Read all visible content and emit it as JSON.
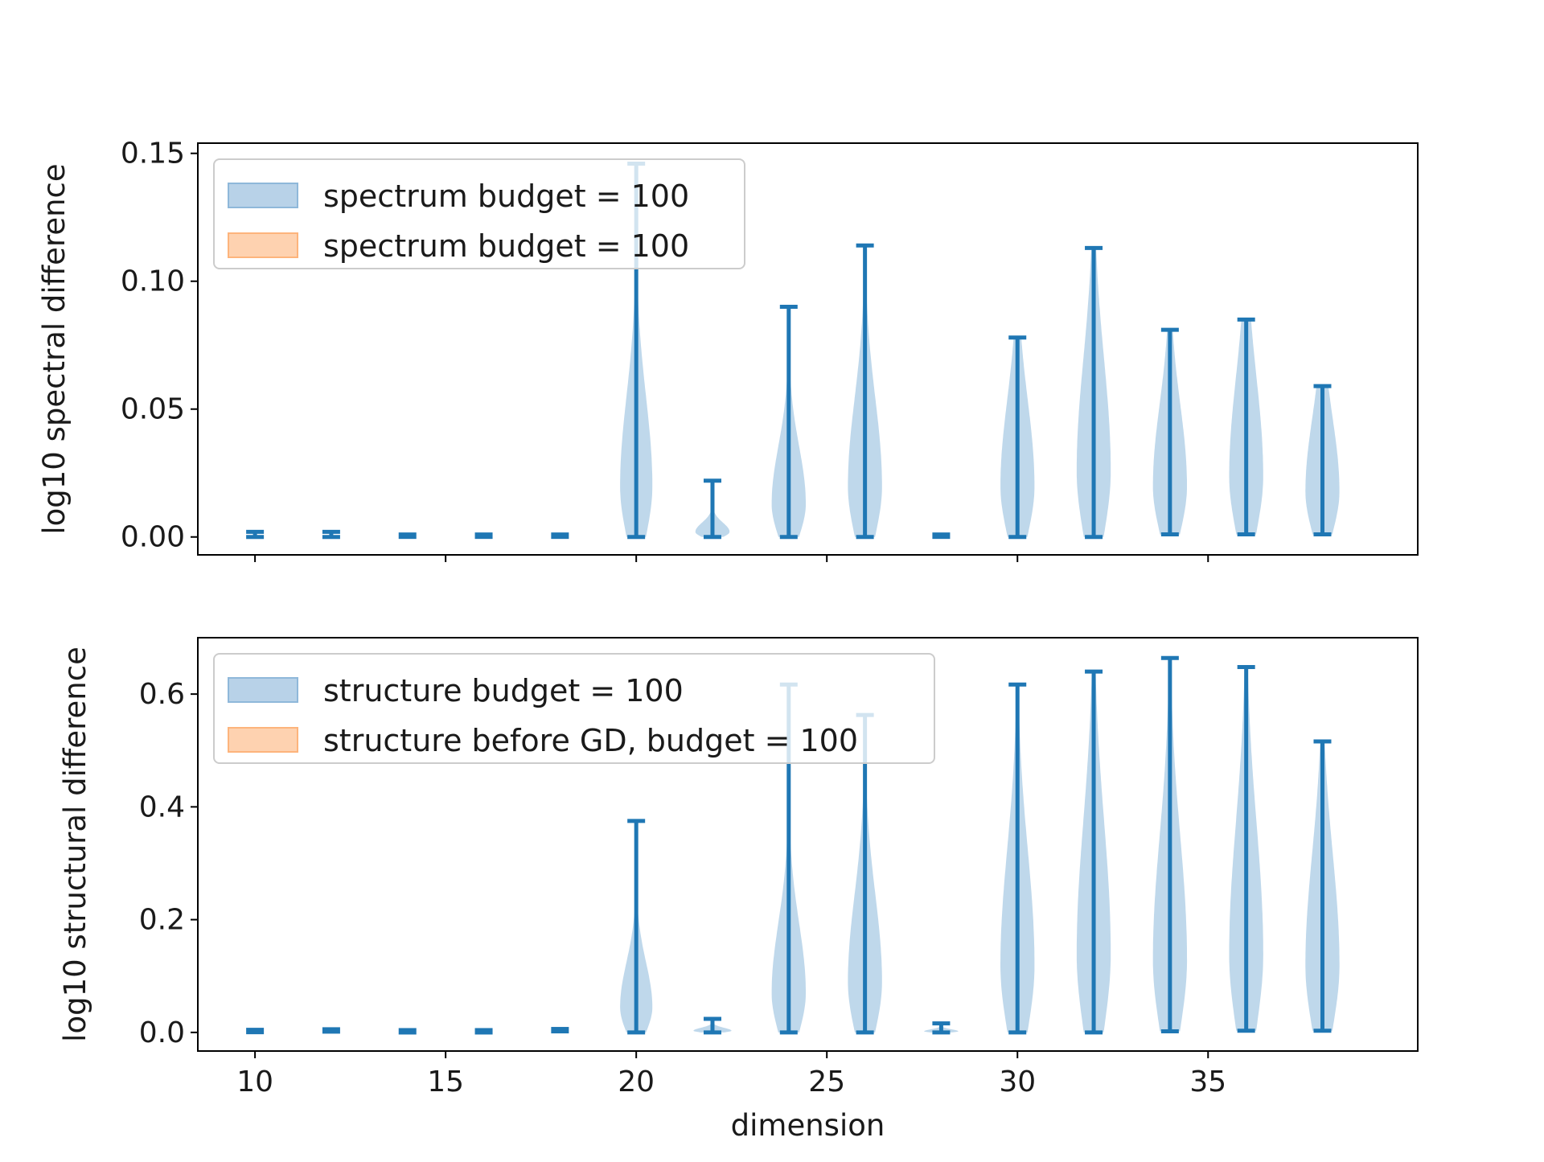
{
  "colors": {
    "series_blue": "#1f77b4",
    "violin_fill": "#bcd6ea",
    "legend_blue_fill": "#b8d2e8",
    "legend_blue_edge": "#8fb8da",
    "legend_orange_fill": "#fed2b0",
    "legend_orange_edge": "#fdb47c",
    "axis": "#000000",
    "legend_frame": "#cccccc"
  },
  "chart_data": [
    {
      "type": "violin",
      "ylabel": "log10 spectral difference",
      "xlabel": "",
      "xlim": [
        8.5,
        40.5
      ],
      "ylim": [
        -0.007,
        0.154
      ],
      "xticks": [
        10,
        15,
        20,
        25,
        30,
        35
      ],
      "xtick_labels_visible": false,
      "yticks": [
        0.0,
        0.05,
        0.1,
        0.15
      ],
      "ytick_labels": [
        "0.00",
        "0.05",
        "0.10",
        "0.15"
      ],
      "legend": {
        "placement": "upper-left",
        "entries": [
          {
            "label": "spectrum budget = 100",
            "color": "blue"
          },
          {
            "label": "spectrum budget = 100",
            "color": "orange"
          }
        ]
      },
      "series": [
        {
          "dimension": 10,
          "min": 0.0,
          "max": 0.002,
          "peak": 0.0,
          "width": 0.0
        },
        {
          "dimension": 12,
          "min": 0.0,
          "max": 0.002,
          "peak": 0.0,
          "width": 0.0
        },
        {
          "dimension": 14,
          "min": 0.0,
          "max": 0.001,
          "peak": 0.0,
          "width": 0.0
        },
        {
          "dimension": 16,
          "min": 0.0,
          "max": 0.001,
          "peak": 0.0,
          "width": 0.0
        },
        {
          "dimension": 18,
          "min": 0.0,
          "max": 0.001,
          "peak": 0.0,
          "width": 0.0
        },
        {
          "dimension": 20,
          "min": 0.0,
          "max": 0.146,
          "peak": 0.02,
          "width": 0.85
        },
        {
          "dimension": 22,
          "min": 0.0,
          "max": 0.022,
          "peak": 0.002,
          "width": 0.9
        },
        {
          "dimension": 24,
          "min": 0.0,
          "max": 0.09,
          "peak": 0.013,
          "width": 0.9
        },
        {
          "dimension": 26,
          "min": 0.0,
          "max": 0.114,
          "peak": 0.02,
          "width": 0.9
        },
        {
          "dimension": 28,
          "min": 0.0,
          "max": 0.001,
          "peak": 0.0,
          "width": 0.0
        },
        {
          "dimension": 30,
          "min": 0.0,
          "max": 0.078,
          "peak": 0.02,
          "width": 0.9
        },
        {
          "dimension": 32,
          "min": 0.0,
          "max": 0.113,
          "peak": 0.026,
          "width": 0.9
        },
        {
          "dimension": 34,
          "min": 0.001,
          "max": 0.081,
          "peak": 0.02,
          "width": 0.9
        },
        {
          "dimension": 36,
          "min": 0.001,
          "max": 0.085,
          "peak": 0.024,
          "width": 0.9
        },
        {
          "dimension": 38,
          "min": 0.001,
          "max": 0.059,
          "peak": 0.018,
          "width": 0.9
        }
      ]
    },
    {
      "type": "violin",
      "ylabel": "log10 structural difference",
      "xlabel": "dimension",
      "xlim": [
        8.5,
        40.5
      ],
      "ylim": [
        -0.033,
        0.7
      ],
      "xticks": [
        10,
        15,
        20,
        25,
        30,
        35
      ],
      "xtick_labels_visible": true,
      "xtick_labels": [
        "10",
        "15",
        "20",
        "25",
        "30",
        "35"
      ],
      "yticks": [
        0.0,
        0.2,
        0.4,
        0.6
      ],
      "ytick_labels": [
        "0.0",
        "0.2",
        "0.4",
        "0.6"
      ],
      "legend": {
        "placement": "upper-left",
        "entries": [
          {
            "label": "structure budget = 100",
            "color": "blue"
          },
          {
            "label": "structure before GD, budget = 100",
            "color": "orange"
          }
        ]
      },
      "series": [
        {
          "dimension": 10,
          "min": 0.0,
          "max": 0.005,
          "peak": 0.0,
          "width": 0.0
        },
        {
          "dimension": 12,
          "min": 0.0,
          "max": 0.007,
          "peak": 0.0,
          "width": 0.0
        },
        {
          "dimension": 14,
          "min": 0.0,
          "max": 0.004,
          "peak": 0.0,
          "width": 0.0
        },
        {
          "dimension": 16,
          "min": 0.0,
          "max": 0.004,
          "peak": 0.0,
          "width": 0.0
        },
        {
          "dimension": 18,
          "min": 0.0,
          "max": 0.008,
          "peak": 0.0,
          "width": 0.0
        },
        {
          "dimension": 20,
          "min": 0.0,
          "max": 0.375,
          "peak": 0.045,
          "width": 0.85
        },
        {
          "dimension": 22,
          "min": 0.0,
          "max": 0.024,
          "peak": 0.003,
          "width": 1.0
        },
        {
          "dimension": 24,
          "min": 0.0,
          "max": 0.617,
          "peak": 0.07,
          "width": 0.9
        },
        {
          "dimension": 26,
          "min": 0.0,
          "max": 0.563,
          "peak": 0.09,
          "width": 0.9
        },
        {
          "dimension": 28,
          "min": 0.0,
          "max": 0.016,
          "peak": 0.002,
          "width": 0.9
        },
        {
          "dimension": 30,
          "min": 0.0,
          "max": 0.617,
          "peak": 0.12,
          "width": 0.9
        },
        {
          "dimension": 32,
          "min": 0.0,
          "max": 0.64,
          "peak": 0.14,
          "width": 0.9
        },
        {
          "dimension": 34,
          "min": 0.002,
          "max": 0.664,
          "peak": 0.13,
          "width": 0.9
        },
        {
          "dimension": 36,
          "min": 0.003,
          "max": 0.648,
          "peak": 0.14,
          "width": 0.9
        },
        {
          "dimension": 38,
          "min": 0.003,
          "max": 0.516,
          "peak": 0.12,
          "width": 0.9
        }
      ]
    }
  ]
}
